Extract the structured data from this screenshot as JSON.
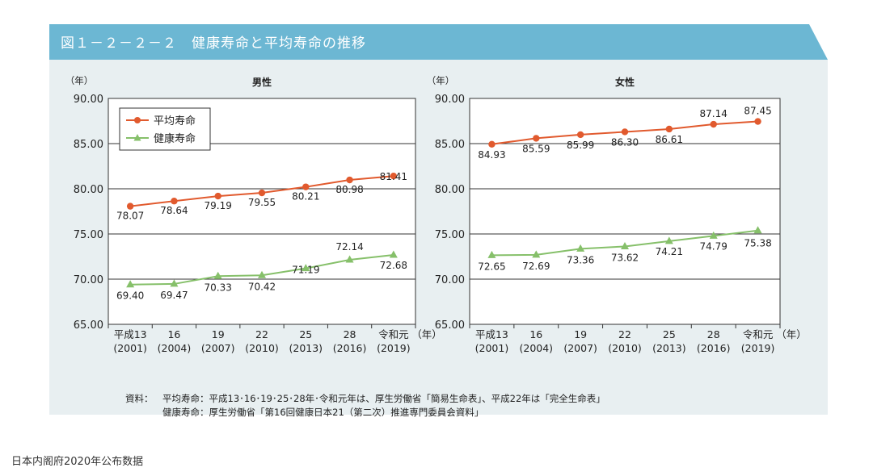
{
  "banner": {
    "title": "図１－２－２－２　健康寿命と平均寿命の推移",
    "color": "#6cb7d3"
  },
  "colors": {
    "avg": "#e15a2e",
    "healthy": "#86c06a"
  },
  "chart_data": [
    {
      "type": "line",
      "title": "男性",
      "ylabel": "（年）",
      "xlabel": "（年）",
      "ylim": [
        65,
        90
      ],
      "yticks": [
        "65.00",
        "70.00",
        "75.00",
        "80.00",
        "85.00",
        "90.00"
      ],
      "categories": [
        "平成13",
        "16",
        "19",
        "22",
        "25",
        "28",
        "令和元"
      ],
      "categories_sub": [
        "(2001)",
        "(2004)",
        "(2007)",
        "(2010)",
        "(2013)",
        "(2016)",
        "(2019)"
      ],
      "legend_position": "top-left",
      "series": [
        {
          "name": "平均寿命",
          "values": [
            78.07,
            78.64,
            79.19,
            79.55,
            80.21,
            80.98,
            81.41
          ],
          "labels": [
            "78.07",
            "78.64",
            "79.19",
            "79.55",
            "80.21",
            "80.98",
            "81.41"
          ]
        },
        {
          "name": "健康寿命",
          "values": [
            69.4,
            69.47,
            70.33,
            70.42,
            71.19,
            72.14,
            72.68
          ],
          "labels": [
            "69.40",
            "69.47",
            "70.33",
            "70.42",
            "71.19",
            "72.14",
            "72.68"
          ]
        }
      ]
    },
    {
      "type": "line",
      "title": "女性",
      "ylabel": "（年）",
      "xlabel": "（年）",
      "ylim": [
        65,
        90
      ],
      "yticks": [
        "65.00",
        "70.00",
        "75.00",
        "80.00",
        "85.00",
        "90.00"
      ],
      "categories": [
        "平成13",
        "16",
        "19",
        "22",
        "25",
        "28",
        "令和元"
      ],
      "categories_sub": [
        "(2001)",
        "(2004)",
        "(2007)",
        "(2010)",
        "(2013)",
        "(2016)",
        "(2019)"
      ],
      "series": [
        {
          "name": "平均寿命",
          "values": [
            84.93,
            85.59,
            85.99,
            86.3,
            86.61,
            87.14,
            87.45
          ],
          "labels": [
            "84.93",
            "85.59",
            "85.99",
            "86.30",
            "86.61",
            "87.14",
            "87.45"
          ]
        },
        {
          "name": "健康寿命",
          "values": [
            72.65,
            72.69,
            73.36,
            73.62,
            74.21,
            74.79,
            75.38
          ],
          "labels": [
            "72.65",
            "72.69",
            "73.36",
            "73.62",
            "74.21",
            "74.79",
            "75.38"
          ]
        }
      ]
    }
  ],
  "source": {
    "label": "資料：",
    "line1": "平均寿命：平成13･16･19･25･28年･令和元年は、厚生労働省「簡易生命表」、平成22年は「完全生命表」",
    "line2": "健康寿命：厚生労働省「第16回健康日本21（第二次）推進専門委員会資料」"
  },
  "footer": "日本内阁府2020年公布数据"
}
